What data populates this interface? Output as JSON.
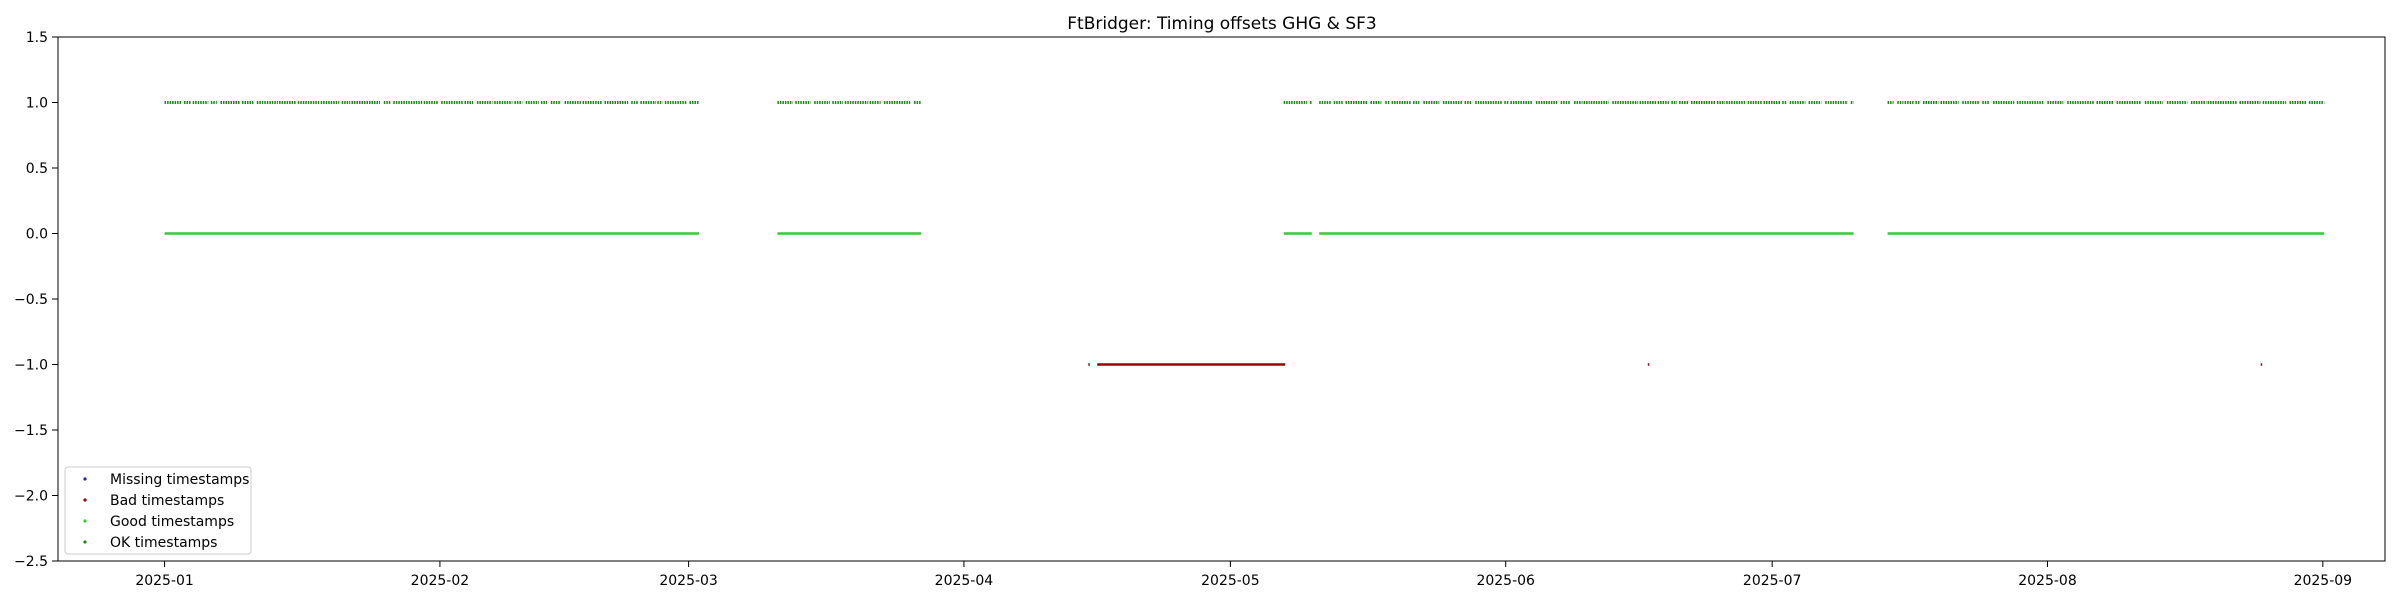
{
  "chart_data": {
    "type": "scatter",
    "title": "FtBridger: Timing offsets GHG & SF3",
    "xlabel": "",
    "ylabel": "",
    "xlim": [
      "2024-12-20",
      "2025-09-08"
    ],
    "ylim": [
      -2.5,
      1.5
    ],
    "x_ticks": [
      "2025-01",
      "2025-02",
      "2025-03",
      "2025-04",
      "2025-05",
      "2025-06",
      "2025-07",
      "2025-08",
      "2025-09"
    ],
    "y_ticks": [
      "1.5",
      "1.0",
      "0.5",
      "0.0",
      "−0.5",
      "−1.0",
      "−1.5",
      "−2.0",
      "−2.5"
    ],
    "y_tick_values": [
      1.5,
      1.0,
      0.5,
      0.0,
      -0.5,
      -1.0,
      -1.5,
      -2.0,
      -2.5
    ],
    "grid": false,
    "legend_position": "lower-left",
    "series": [
      {
        "name": "Missing timestamps",
        "color": "#1f1fb4",
        "y": -1.0,
        "ranges": []
      },
      {
        "name": "Bad timestamps",
        "color": "#a00000",
        "y": -1.0,
        "ranges": [
          [
            "2025-04-15",
            "2025-04-15"
          ],
          [
            "2025-04-16",
            "2025-05-07"
          ],
          [
            "2025-06-17",
            "2025-06-17"
          ],
          [
            "2025-08-25",
            "2025-08-25"
          ]
        ]
      },
      {
        "name": "Good timestamps",
        "color": "#33cc33",
        "y": 0.0,
        "ranges": [
          [
            "2025-01-01",
            "2025-03-02"
          ],
          [
            "2025-03-11",
            "2025-03-27"
          ],
          [
            "2025-05-07",
            "2025-05-10"
          ],
          [
            "2025-05-11",
            "2025-07-10"
          ],
          [
            "2025-07-14",
            "2025-09-01"
          ]
        ]
      },
      {
        "name": "OK timestamps",
        "color": "#1a8a1a",
        "y": 1.0,
        "ranges": [
          [
            "2025-01-01",
            "2025-03-02"
          ],
          [
            "2025-03-11",
            "2025-03-27"
          ],
          [
            "2025-05-07",
            "2025-05-10"
          ],
          [
            "2025-05-11",
            "2025-07-10"
          ],
          [
            "2025-07-14",
            "2025-09-01"
          ]
        ]
      }
    ]
  }
}
